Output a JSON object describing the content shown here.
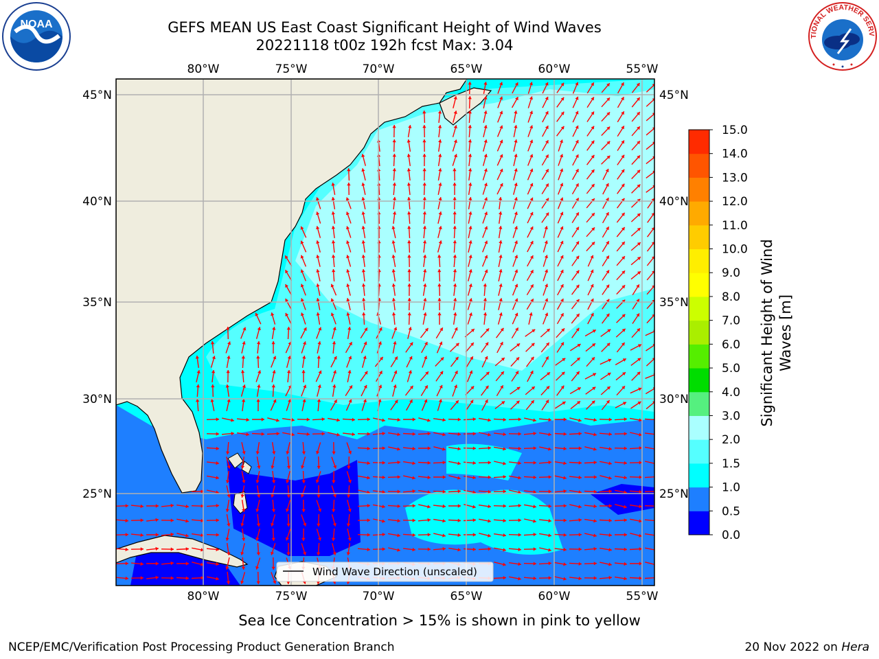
{
  "header": {
    "title_line1": "GEFS MEAN US East Coast Significant Height of Wind Waves",
    "title_line2": "20221118 t00z 192h fcst   Max: 3.04"
  },
  "logos": {
    "left": "NOAA",
    "right": "NATIONAL WEATHER SERVICE"
  },
  "map": {
    "lon_labels": [
      "80°W",
      "75°W",
      "70°W",
      "65°W",
      "60°W",
      "55°W"
    ],
    "lat_labels": [
      "45°N",
      "40°N",
      "35°N",
      "30°N",
      "25°N"
    ],
    "legend_label": "Wind Wave Direction (unscaled)",
    "land_color": "#efedde",
    "arrow_color": "#ff0000",
    "grid_color": "#b0b0b0"
  },
  "colorbar": {
    "label_line1": "Significant Height of Wind",
    "label_line2": "Waves [m]",
    "ticks": [
      "0.0",
      "0.5",
      "1.0",
      "1.5",
      "2.0",
      "3.0",
      "4.0",
      "5.0",
      "6.0",
      "7.0",
      "8.0",
      "9.0",
      "10.0",
      "11.0",
      "12.0",
      "13.0",
      "14.0",
      "15.0"
    ],
    "colors": [
      "#0000ff",
      "#1e7fff",
      "#00ffff",
      "#55ffff",
      "#aaffff",
      "#55f07f",
      "#00dd00",
      "#55ee00",
      "#aaee00",
      "#ccff00",
      "#ffff00",
      "#ffee00",
      "#ffcc00",
      "#ffaa00",
      "#ff8000",
      "#ff5500",
      "#ff2b00"
    ]
  },
  "footer": {
    "note": "Sea Ice Concentration > 15% is shown in pink to yellow",
    "branch": "NCEP/EMC/Verification Post Processing Product Generation Branch",
    "date": "20 Nov 2022 on",
    "host": "Hera"
  }
}
